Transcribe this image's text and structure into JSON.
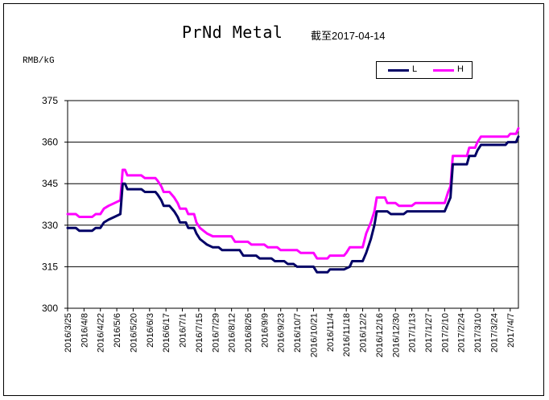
{
  "title": "PrNd Metal",
  "subtitle": "截至2017-04-14",
  "unit": "RMB/kG",
  "colors": {
    "L": "#000066",
    "H": "#ff00ff"
  },
  "chart_data": {
    "type": "line",
    "title": "PrNd Metal",
    "subtitle": "截至2017-04-14",
    "ylabel": "RMB/kG",
    "ylim": [
      300,
      375
    ],
    "yticks": [
      300,
      315,
      330,
      345,
      360,
      375
    ],
    "grid": "horizontal",
    "legend_position": "top-right",
    "x_range": [
      "2016/3/25",
      "2017/4/14"
    ],
    "xtick_labels": [
      "2016/3/25",
      "2016/4/8",
      "2016/4/22",
      "2016/5/6",
      "2016/5/20",
      "2016/6/3",
      "2016/6/17",
      "2016/7/1",
      "2016/7/15",
      "2016/7/29",
      "2016/8/12",
      "2016/8/26",
      "2016/9/9",
      "2016/9/23",
      "2016/10/7",
      "2016/10/21",
      "2016/11/4",
      "2016/11/18",
      "2016/12/2",
      "2016/12/16",
      "2016/12/30",
      "2017/1/13",
      "2017/1/27",
      "2017/2/10",
      "2017/2/24",
      "2017/3/10",
      "2017/3/24",
      "2017/4/7"
    ],
    "series": [
      {
        "name": "L",
        "points": [
          [
            "2016/3/25",
            329
          ],
          [
            "2016/4/1",
            329
          ],
          [
            "2016/4/4",
            328
          ],
          [
            "2016/4/15",
            328
          ],
          [
            "2016/4/18",
            329
          ],
          [
            "2016/4/22",
            329
          ],
          [
            "2016/4/25",
            331
          ],
          [
            "2016/4/29",
            332
          ],
          [
            "2016/5/4",
            333
          ],
          [
            "2016/5/9",
            334
          ],
          [
            "2016/5/11",
            345
          ],
          [
            "2016/5/13",
            345
          ],
          [
            "2016/5/15",
            343
          ],
          [
            "2016/5/27",
            343
          ],
          [
            "2016/5/30",
            342
          ],
          [
            "2016/6/8",
            342
          ],
          [
            "2016/6/10",
            341
          ],
          [
            "2016/6/13",
            339
          ],
          [
            "2016/6/15",
            337
          ],
          [
            "2016/6/20",
            337
          ],
          [
            "2016/6/24",
            335
          ],
          [
            "2016/6/27",
            333
          ],
          [
            "2016/6/29",
            331
          ],
          [
            "2016/7/4",
            331
          ],
          [
            "2016/7/6",
            329
          ],
          [
            "2016/7/11",
            329
          ],
          [
            "2016/7/13",
            327
          ],
          [
            "2016/7/16",
            325
          ],
          [
            "2016/7/22",
            323
          ],
          [
            "2016/7/27",
            322
          ],
          [
            "2016/8/1",
            322
          ],
          [
            "2016/8/4",
            321
          ],
          [
            "2016/8/19",
            321
          ],
          [
            "2016/8/22",
            319
          ],
          [
            "2016/9/2",
            319
          ],
          [
            "2016/9/5",
            318
          ],
          [
            "2016/9/15",
            318
          ],
          [
            "2016/9/18",
            317
          ],
          [
            "2016/9/26",
            317
          ],
          [
            "2016/9/29",
            316
          ],
          [
            "2016/10/4",
            316
          ],
          [
            "2016/10/7",
            315
          ],
          [
            "2016/10/21",
            315
          ],
          [
            "2016/10/24",
            313
          ],
          [
            "2016/11/2",
            313
          ],
          [
            "2016/11/4",
            314
          ],
          [
            "2016/11/16",
            314
          ],
          [
            "2016/11/21",
            315
          ],
          [
            "2016/11/23",
            317
          ],
          [
            "2016/12/2",
            317
          ],
          [
            "2016/12/5",
            320
          ],
          [
            "2016/12/9",
            325
          ],
          [
            "2016/12/12",
            330
          ],
          [
            "2016/12/14",
            335
          ],
          [
            "2016/12/23",
            335
          ],
          [
            "2016/12/26",
            334
          ],
          [
            "2017/1/6",
            334
          ],
          [
            "2017/1/9",
            335
          ],
          [
            "2017/2/10",
            335
          ],
          [
            "2017/2/13",
            338
          ],
          [
            "2017/2/15",
            340
          ],
          [
            "2017/2/17",
            352
          ],
          [
            "2017/3/1",
            352
          ],
          [
            "2017/3/3",
            355
          ],
          [
            "2017/3/8",
            355
          ],
          [
            "2017/3/10",
            357
          ],
          [
            "2017/3/13",
            359
          ],
          [
            "2017/4/3",
            359
          ],
          [
            "2017/4/5",
            360
          ],
          [
            "2017/4/12",
            360
          ],
          [
            "2017/4/14",
            362
          ]
        ]
      },
      {
        "name": "H",
        "points": [
          [
            "2016/3/25",
            334
          ],
          [
            "2016/4/1",
            334
          ],
          [
            "2016/4/4",
            333
          ],
          [
            "2016/4/15",
            333
          ],
          [
            "2016/4/18",
            334
          ],
          [
            "2016/4/22",
            334
          ],
          [
            "2016/4/25",
            336
          ],
          [
            "2016/4/29",
            337
          ],
          [
            "2016/5/4",
            338
          ],
          [
            "2016/5/9",
            339
          ],
          [
            "2016/5/11",
            350
          ],
          [
            "2016/5/13",
            350
          ],
          [
            "2016/5/15",
            348
          ],
          [
            "2016/5/27",
            348
          ],
          [
            "2016/5/30",
            347
          ],
          [
            "2016/6/8",
            347
          ],
          [
            "2016/6/10",
            346
          ],
          [
            "2016/6/13",
            344
          ],
          [
            "2016/6/15",
            342
          ],
          [
            "2016/6/20",
            342
          ],
          [
            "2016/6/24",
            340
          ],
          [
            "2016/6/27",
            338
          ],
          [
            "2016/6/29",
            336
          ],
          [
            "2016/7/4",
            336
          ],
          [
            "2016/7/6",
            334
          ],
          [
            "2016/7/11",
            334
          ],
          [
            "2016/7/13",
            331
          ],
          [
            "2016/7/16",
            329
          ],
          [
            "2016/7/22",
            327
          ],
          [
            "2016/7/27",
            326
          ],
          [
            "2016/8/12",
            326
          ],
          [
            "2016/8/15",
            324
          ],
          [
            "2016/8/26",
            324
          ],
          [
            "2016/8/29",
            323
          ],
          [
            "2016/9/9",
            323
          ],
          [
            "2016/9/12",
            322
          ],
          [
            "2016/9/20",
            322
          ],
          [
            "2016/9/23",
            321
          ],
          [
            "2016/10/7",
            321
          ],
          [
            "2016/10/10",
            320
          ],
          [
            "2016/10/21",
            320
          ],
          [
            "2016/10/24",
            318
          ],
          [
            "2016/11/2",
            318
          ],
          [
            "2016/11/4",
            319
          ],
          [
            "2016/11/16",
            319
          ],
          [
            "2016/11/18",
            320
          ],
          [
            "2016/11/21",
            322
          ],
          [
            "2016/12/2",
            322
          ],
          [
            "2016/12/5",
            327
          ],
          [
            "2016/12/9",
            331
          ],
          [
            "2016/12/12",
            335
          ],
          [
            "2016/12/14",
            340
          ],
          [
            "2016/12/21",
            340
          ],
          [
            "2016/12/23",
            338
          ],
          [
            "2016/12/30",
            338
          ],
          [
            "2017/1/2",
            337
          ],
          [
            "2017/1/13",
            337
          ],
          [
            "2017/1/16",
            338
          ],
          [
            "2017/2/10",
            338
          ],
          [
            "2017/2/13",
            342
          ],
          [
            "2017/2/15",
            344
          ],
          [
            "2017/2/17",
            355
          ],
          [
            "2017/3/1",
            355
          ],
          [
            "2017/3/3",
            358
          ],
          [
            "2017/3/8",
            358
          ],
          [
            "2017/3/10",
            360
          ],
          [
            "2017/3/13",
            362
          ],
          [
            "2017/4/5",
            362
          ],
          [
            "2017/4/7",
            363
          ],
          [
            "2017/4/12",
            363
          ],
          [
            "2017/4/14",
            365
          ]
        ]
      }
    ]
  }
}
